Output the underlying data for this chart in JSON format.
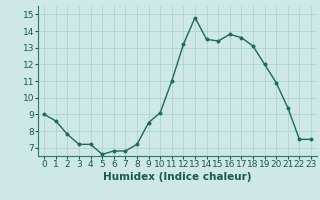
{
  "x": [
    0,
    1,
    2,
    3,
    4,
    5,
    6,
    7,
    8,
    9,
    10,
    11,
    12,
    13,
    14,
    15,
    16,
    17,
    18,
    19,
    20,
    21,
    22,
    23
  ],
  "y": [
    9.0,
    8.6,
    7.8,
    7.2,
    7.2,
    6.6,
    6.8,
    6.8,
    7.2,
    8.5,
    9.1,
    11.0,
    13.2,
    14.8,
    13.5,
    13.4,
    13.8,
    13.6,
    13.1,
    12.0,
    10.9,
    9.4,
    7.5,
    7.5
  ],
  "line_color": "#1a6b5a",
  "marker_color": "#1a6b5a",
  "bg_color": "#cde8e5",
  "grid_color": "#b0d4d0",
  "xlabel": "Humidex (Indice chaleur)",
  "xlim": [
    -0.5,
    23.5
  ],
  "ylim": [
    6.5,
    15.5
  ],
  "xticks": [
    0,
    1,
    2,
    3,
    4,
    5,
    6,
    7,
    8,
    9,
    10,
    11,
    12,
    13,
    14,
    15,
    16,
    17,
    18,
    19,
    20,
    21,
    22,
    23
  ],
  "yticks": [
    7,
    8,
    9,
    10,
    11,
    12,
    13,
    14,
    15
  ],
  "tick_fontsize": 6.5,
  "xlabel_fontsize": 7.5,
  "label_color": "#1a5a50"
}
